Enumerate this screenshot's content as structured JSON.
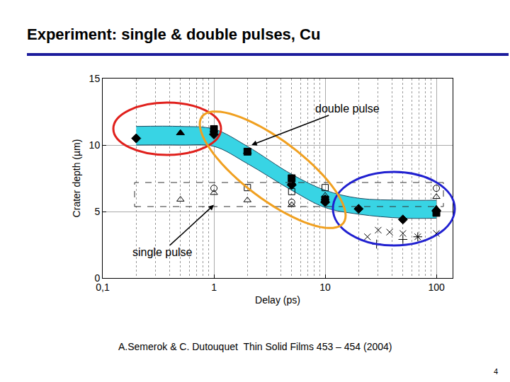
{
  "chart_data": {
    "type": "scatter",
    "title": "Experiment: single & double pulses, Cu",
    "x_label": "Delay (ps)",
    "y_label": "Crater depth (µm)",
    "log": "x",
    "grid": true,
    "xlim": [
      0.1,
      140
    ],
    "ylim": [
      0,
      15
    ],
    "xticks": [
      {
        "value": 0.1,
        "label": "0,1"
      },
      1,
      10,
      100
    ],
    "yticks": [
      0,
      5,
      10,
      15
    ],
    "series": [
      {
        "type": "band",
        "color": "#38d4e4",
        "x": [
          0.2,
          0.5,
          1,
          2,
          5,
          10,
          20,
          50,
          100
        ],
        "lower": [
          10.0,
          10.0,
          9.9,
          8.6,
          6.6,
          5.3,
          4.8,
          4.5,
          4.5
        ],
        "upper": [
          11.4,
          11.4,
          11.2,
          9.9,
          7.8,
          6.6,
          6.0,
          5.85,
          5.85
        ]
      },
      {
        "marker": "diamond",
        "color": "#000000",
        "x": [
          0.2,
          1,
          5,
          10,
          20,
          50,
          100
        ],
        "values": [
          10.5,
          10.8,
          7.0,
          5.7,
          5.2,
          4.4,
          5.05
        ]
      },
      {
        "marker": "triangle-up",
        "color": "#000000",
        "x": [
          0.5,
          1,
          2,
          5,
          10,
          100
        ],
        "values": [
          10.9,
          11.1,
          9.5,
          7.2,
          6.0,
          5.2
        ]
      },
      {
        "marker": "square",
        "color": "#000000",
        "x": [
          1,
          2,
          5,
          10,
          100
        ],
        "values": [
          11.2,
          9.5,
          7.5,
          5.9,
          4.9
        ]
      },
      {
        "marker": "triangle-up-open",
        "color": "#000000",
        "x": [
          0.5,
          1,
          2,
          5,
          10,
          100
        ],
        "values": [
          5.9,
          6.4,
          5.85,
          5.5,
          6.2,
          6.1
        ]
      },
      {
        "marker": "circle-open",
        "color": "#000000",
        "x": [
          1,
          5,
          100
        ],
        "values": [
          6.75,
          5.7,
          6.75
        ]
      },
      {
        "marker": "square-open",
        "color": "#000000",
        "x": [
          2,
          5,
          10
        ],
        "values": [
          6.8,
          6.5,
          6.8
        ]
      },
      {
        "marker": "x-thin-open",
        "color": "#000000",
        "x": [
          24,
          30,
          38,
          50,
          68,
          100
        ],
        "values": [
          3.1,
          3.6,
          3.45,
          3.35,
          3.1,
          3.35
        ]
      },
      {
        "marker": "cross-thin-open",
        "color": "#000000",
        "x": [
          29,
          50,
          68
        ],
        "values": [
          2.55,
          2.9,
          3.1
        ]
      }
    ],
    "annotations": [
      {
        "text": "double pulse",
        "x": 2.18,
        "y": 10.0
      },
      {
        "text": "single pulse",
        "x": 1.0,
        "y": 5.5
      },
      {
        "text": "A.Semerok & C. Dutouquet  Thin Solid Films 453 – 454 (2004)"
      },
      {
        "text": "4"
      }
    ]
  }
}
